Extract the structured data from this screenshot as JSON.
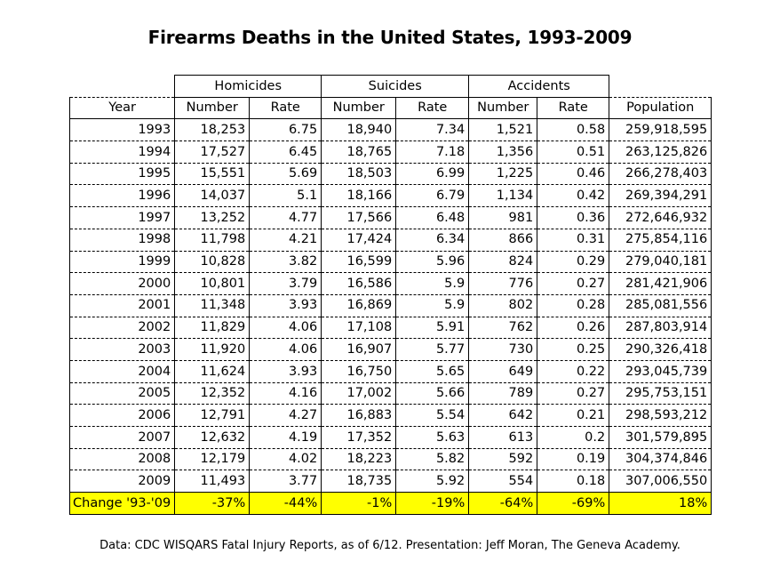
{
  "chart_data": {
    "type": "table",
    "title": "Firearms Deaths in the United States, 1993-2009",
    "groups": [
      "Homicides",
      "Suicides",
      "Accidents"
    ],
    "columns": [
      "Year",
      "Number",
      "Rate",
      "Number",
      "Rate",
      "Number",
      "Rate",
      "Population"
    ],
    "rows": [
      [
        "1993",
        "18,253",
        "6.75",
        "18,940",
        "7.34",
        "1,521",
        "0.58",
        "259,918,595"
      ],
      [
        "1994",
        "17,527",
        "6.45",
        "18,765",
        "7.18",
        "1,356",
        "0.51",
        "263,125,826"
      ],
      [
        "1995",
        "15,551",
        "5.69",
        "18,503",
        "6.99",
        "1,225",
        "0.46",
        "266,278,403"
      ],
      [
        "1996",
        "14,037",
        "5.1",
        "18,166",
        "6.79",
        "1,134",
        "0.42",
        "269,394,291"
      ],
      [
        "1997",
        "13,252",
        "4.77",
        "17,566",
        "6.48",
        "981",
        "0.36",
        "272,646,932"
      ],
      [
        "1998",
        "11,798",
        "4.21",
        "17,424",
        "6.34",
        "866",
        "0.31",
        "275,854,116"
      ],
      [
        "1999",
        "10,828",
        "3.82",
        "16,599",
        "5.96",
        "824",
        "0.29",
        "279,040,181"
      ],
      [
        "2000",
        "10,801",
        "3.79",
        "16,586",
        "5.9",
        "776",
        "0.27",
        "281,421,906"
      ],
      [
        "2001",
        "11,348",
        "3.93",
        "16,869",
        "5.9",
        "802",
        "0.28",
        "285,081,556"
      ],
      [
        "2002",
        "11,829",
        "4.06",
        "17,108",
        "5.91",
        "762",
        "0.26",
        "287,803,914"
      ],
      [
        "2003",
        "11,920",
        "4.06",
        "16,907",
        "5.77",
        "730",
        "0.25",
        "290,326,418"
      ],
      [
        "2004",
        "11,624",
        "3.93",
        "16,750",
        "5.65",
        "649",
        "0.22",
        "293,045,739"
      ],
      [
        "2005",
        "12,352",
        "4.16",
        "17,002",
        "5.66",
        "789",
        "0.27",
        "295,753,151"
      ],
      [
        "2006",
        "12,791",
        "4.27",
        "16,883",
        "5.54",
        "642",
        "0.21",
        "298,593,212"
      ],
      [
        "2007",
        "12,632",
        "4.19",
        "17,352",
        "5.63",
        "613",
        "0.2",
        "301,579,895"
      ],
      [
        "2008",
        "12,179",
        "4.02",
        "18,223",
        "5.82",
        "592",
        "0.19",
        "304,374,846"
      ],
      [
        "2009",
        "11,493",
        "3.77",
        "18,735",
        "5.92",
        "554",
        "0.18",
        "307,006,550"
      ]
    ],
    "change_row": [
      "Change '93-'09",
      "-37%",
      "-44%",
      "-1%",
      "-19%",
      "-64%",
      "-69%",
      "18%"
    ],
    "highlight_color": "#ffff00"
  },
  "footer": "Data: CDC WISQARS Fatal Injury Reports, as of 6/12.  Presentation: Jeff Moran, The Geneva Academy."
}
